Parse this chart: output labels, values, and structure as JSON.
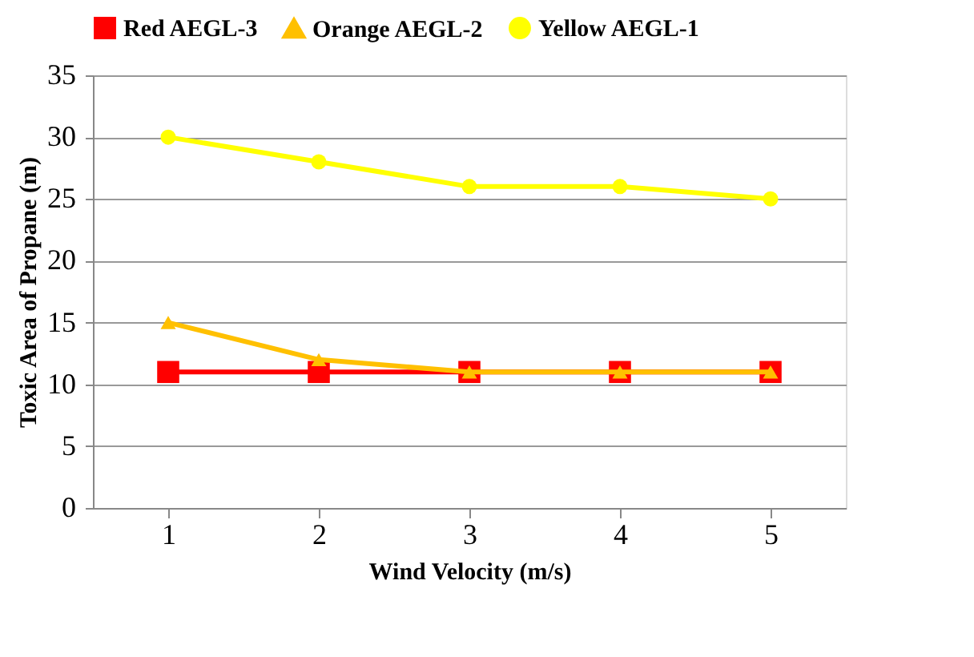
{
  "chart_data": {
    "type": "line",
    "xlabel": "Wind Velocity (m/s)",
    "ylabel": "Toxic Area of Propane (m)",
    "categories": [
      "1",
      "2",
      "3",
      "4",
      "5"
    ],
    "series": [
      {
        "name": "Red AEGL-3",
        "color": "#ff0000",
        "marker": "square",
        "values": [
          11,
          11,
          11,
          11,
          11
        ]
      },
      {
        "name": "Orange AEGL-2",
        "color": "#ffc000",
        "marker": "triangle",
        "values": [
          15,
          12,
          11,
          11,
          11
        ]
      },
      {
        "name": "Yellow AEGL-1",
        "color": "#ffff00",
        "marker": "circle",
        "values": [
          30,
          28,
          26,
          26,
          25
        ]
      }
    ],
    "ylim": [
      0,
      35
    ],
    "yticks": [
      0,
      5,
      10,
      15,
      20,
      25,
      30,
      35
    ],
    "grid": "y",
    "legend": "top"
  }
}
